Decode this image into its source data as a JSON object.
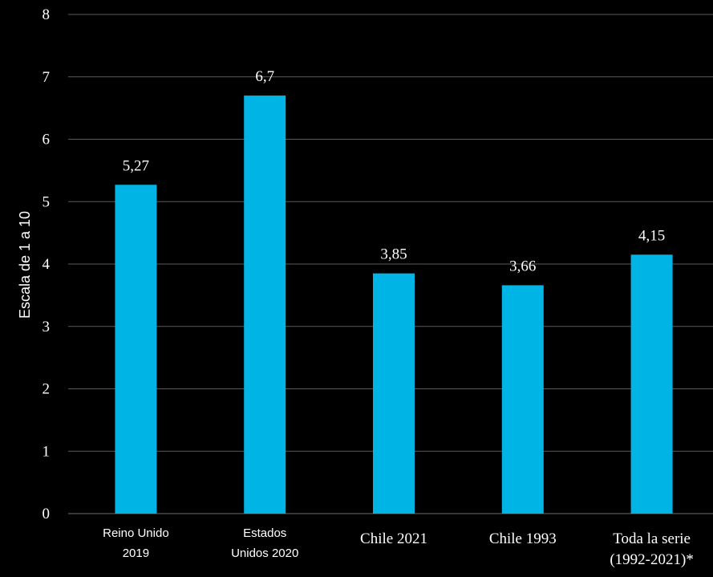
{
  "chart_data": {
    "type": "bar",
    "ylabel": "Escala de 1 a 10",
    "ylim": [
      0,
      8
    ],
    "yticks": [
      "0",
      "1",
      "2",
      "3",
      "4",
      "5",
      "6",
      "7",
      "8"
    ],
    "grid": true,
    "categories": [
      [
        "Reino Unido",
        "2019"
      ],
      [
        "Estados",
        "Unidos 2020"
      ],
      [
        "Chile 2021"
      ],
      [
        "Chile 1993"
      ],
      [
        "Toda la serie",
        "(1992-2021)*"
      ]
    ],
    "values": [
      5.27,
      6.7,
      3.85,
      3.66,
      4.15
    ],
    "value_labels": [
      "5,27",
      "6,7",
      "3,85",
      "3,66",
      "4,15"
    ],
    "colors": {
      "background": "#000000",
      "bar": "#00b5e6",
      "grid": "#5a5a5a",
      "text": "#ffffff"
    }
  }
}
